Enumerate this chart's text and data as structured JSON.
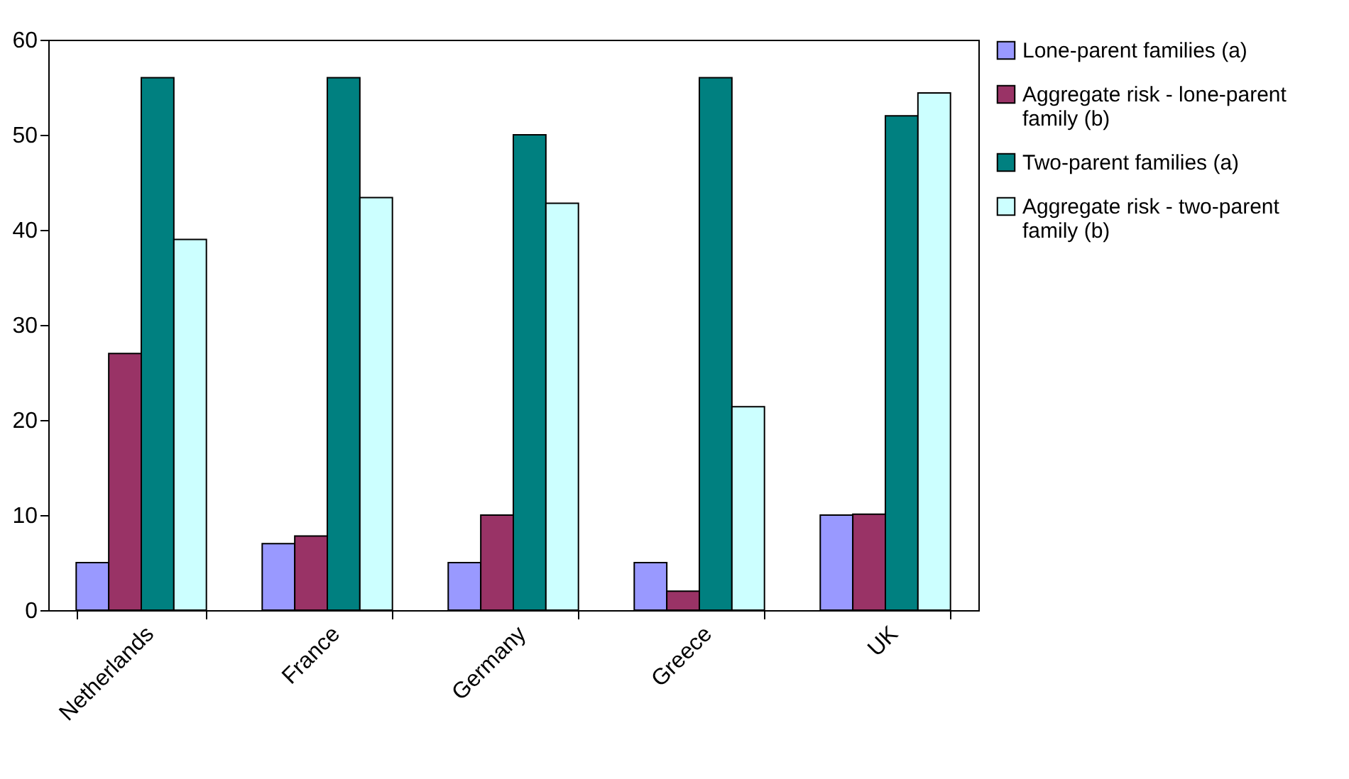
{
  "chart_data": {
    "type": "bar",
    "categories": [
      "Netherlands",
      "France",
      "Germany",
      "Greece",
      "UK"
    ],
    "series": [
      {
        "name": "Lone-parent families (a)",
        "color": "#9999ff",
        "values": [
          5,
          7,
          5,
          5,
          10
        ]
      },
      {
        "name": "Aggregate risk - lone-parent family (b)",
        "color": "#993366",
        "values": [
          27,
          7.8,
          10,
          2,
          10.1
        ]
      },
      {
        "name": "Two-parent families (a)",
        "color": "#008080",
        "values": [
          56,
          56,
          50,
          56,
          52
        ]
      },
      {
        "name": "Aggregate risk - two-parent family (b)",
        "color": "#ccffff",
        "values": [
          39,
          43.4,
          42.8,
          21.4,
          54.4
        ]
      }
    ],
    "ylim": [
      0,
      60
    ],
    "yticks": [
      0,
      10,
      20,
      30,
      40,
      50,
      60
    ],
    "grid": false,
    "legend": "right"
  }
}
